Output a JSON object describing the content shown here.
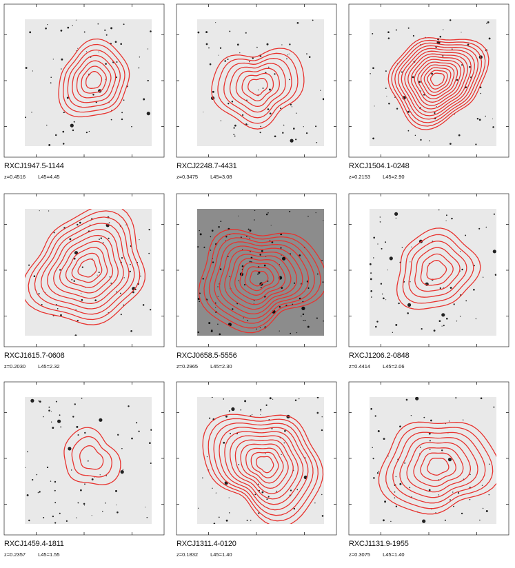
{
  "clusters": [
    {
      "name": "RXCJ1947.5-1144",
      "z": "z=0.4516",
      "l45": "L45=4.45",
      "bg": "light",
      "seed": 11,
      "n_contours": 7,
      "spacing": 7
    },
    {
      "name": "RXCJ2248.7-4431",
      "z": "z=0.3475",
      "l45": "L45=3.08",
      "bg": "light",
      "seed": 23,
      "n_contours": 7,
      "spacing": 8
    },
    {
      "name": "RXCJ1504.1-0248",
      "z": "z=0.2153",
      "l45": "L45=2.90",
      "bg": "light",
      "seed": 37,
      "n_contours": 14,
      "spacing": 4.5
    },
    {
      "name": "RXCJ1615.7-0608",
      "z": "z=0.2030",
      "l45": "L45=2.32",
      "bg": "light",
      "seed": 41,
      "n_contours": 10,
      "spacing": 8
    },
    {
      "name": "RXCJ0658.5-5556",
      "z": "z=0.2965",
      "l45": "L45=2.30",
      "bg": "dark",
      "seed": 53,
      "n_contours": 11,
      "spacing": 7
    },
    {
      "name": "RXCJ1206.2-0848",
      "z": "z=0.4414",
      "l45": "L45=2.06",
      "bg": "light",
      "seed": 67,
      "n_contours": 6,
      "spacing": 9
    },
    {
      "name": "RXCJ1459.4-1811",
      "z": "z=0.2357",
      "l45": "L45=1.55",
      "bg": "light",
      "seed": 71,
      "n_contours": 3,
      "spacing": 12
    },
    {
      "name": "RXCJ1311.4-0120",
      "z": "z=0.1832",
      "l45": "L45=1.40",
      "bg": "light",
      "seed": 83,
      "n_contours": 11,
      "spacing": 7
    },
    {
      "name": "RXCJ1131.9-1955",
      "z": "z=0.3075",
      "l45": "L45=1.40",
      "bg": "light",
      "seed": 97,
      "n_contours": 8,
      "spacing": 9
    }
  ],
  "colors": {
    "contour": "#e8332f",
    "bg_light": "#e9e9e9",
    "bg_dark": "#8c8c8c",
    "axis": "#222222"
  }
}
